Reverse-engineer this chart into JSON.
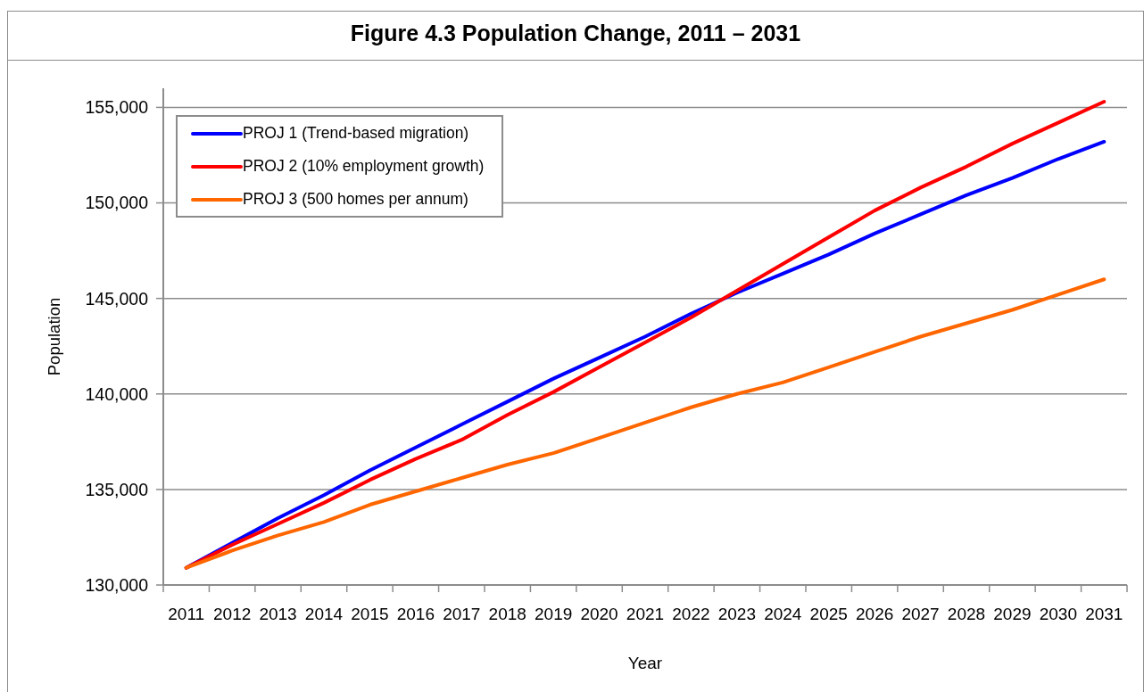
{
  "chart_data": {
    "type": "line",
    "title": "Figure 4.3 Population Change, 2011 – 2031",
    "xlabel": "Year",
    "ylabel": "Population",
    "categories": [
      "2011",
      "2012",
      "2013",
      "2014",
      "2015",
      "2016",
      "2017",
      "2018",
      "2019",
      "2020",
      "2021",
      "2022",
      "2023",
      "2024",
      "2025",
      "2026",
      "2027",
      "2028",
      "2029",
      "2030",
      "2031"
    ],
    "series": [
      {
        "name": "PROJ 1 (Trend-based migration)",
        "color": "#0000ff",
        "values": [
          130900,
          132200,
          133500,
          134700,
          136000,
          137200,
          138400,
          139600,
          140800,
          141900,
          143000,
          144200,
          145300,
          146300,
          147300,
          148400,
          149400,
          150400,
          151300,
          152300,
          153200
        ]
      },
      {
        "name": "PROJ 2 (10% employment growth)",
        "color": "#ff0000",
        "values": [
          130900,
          132100,
          133200,
          134300,
          135500,
          136600,
          137600,
          138900,
          140100,
          141400,
          142700,
          144000,
          145400,
          146800,
          148200,
          149600,
          150800,
          151900,
          153100,
          154200,
          155300
        ]
      },
      {
        "name": "PROJ 3 (500 homes per annum)",
        "color": "#ff6600",
        "values": [
          130900,
          131800,
          132600,
          133300,
          134200,
          134900,
          135600,
          136300,
          136900,
          137700,
          138500,
          139300,
          140000,
          140600,
          141400,
          142200,
          143000,
          143700,
          144400,
          145200,
          146000
        ]
      }
    ],
    "ylim": [
      130000,
      156000
    ],
    "yticks": [
      {
        "value": 130000,
        "label": "130,000"
      },
      {
        "value": 135000,
        "label": "135,000"
      },
      {
        "value": 140000,
        "label": "140,000"
      },
      {
        "value": 145000,
        "label": "145,000"
      },
      {
        "value": 150000,
        "label": "150,000"
      },
      {
        "value": 155000,
        "label": "155,000"
      }
    ],
    "grid": "y",
    "legend": "top left",
    "marker": "none"
  }
}
